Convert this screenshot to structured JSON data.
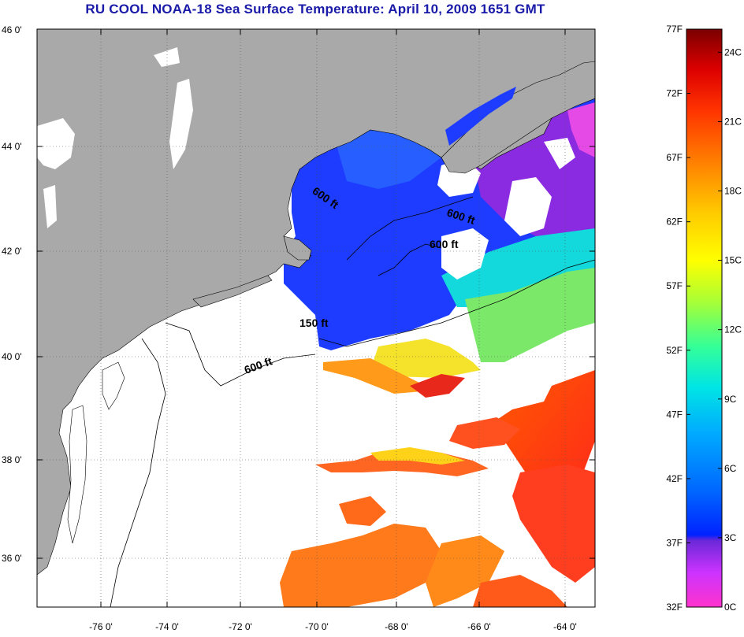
{
  "title": "RU COOL  NOAA-18  Sea Surface Temperature:  April 10, 2009 1651 GMT",
  "map": {
    "lon_range": [
      -77.0,
      -63.0
    ],
    "lat_range": [
      35.0,
      46.0
    ],
    "lat_ticks": [
      "46 0'",
      "44 0'",
      "42 0'",
      "40 0'",
      "38 0'",
      "36 0'"
    ],
    "lon_ticks": [
      "-76 0'",
      "-74 0'",
      "-72 0'",
      "-70 0'",
      "-68 0'",
      "-66 0'",
      "-64 0'"
    ],
    "contour_labels": [
      "600 ft",
      "600 ft",
      "600 ft",
      "150 ft",
      "600 ft"
    ],
    "colors": {
      "land": "#a9a9a9",
      "cloud": "#ffffff",
      "grid": "#555555"
    }
  },
  "colorbar": {
    "range_f": [
      32,
      77
    ],
    "range_c": [
      0,
      25
    ],
    "f_labels": [
      "77F",
      "72F",
      "67F",
      "62F",
      "57F",
      "52F",
      "47F",
      "42F",
      "37F",
      "32F"
    ],
    "c_labels": [
      "24C",
      "21C",
      "18C",
      "15C",
      "12C",
      "9C",
      "6C",
      "3C",
      "0C"
    ],
    "stops": [
      "#ff33cc",
      "#cc33ff",
      "#6a28d8",
      "#0022ff",
      "#0066ff",
      "#00aaff",
      "#00e5e5",
      "#33ff99",
      "#aaff33",
      "#ffff00",
      "#ffcc00",
      "#ff8800",
      "#ff3300",
      "#dd0000",
      "#7a0000"
    ]
  }
}
